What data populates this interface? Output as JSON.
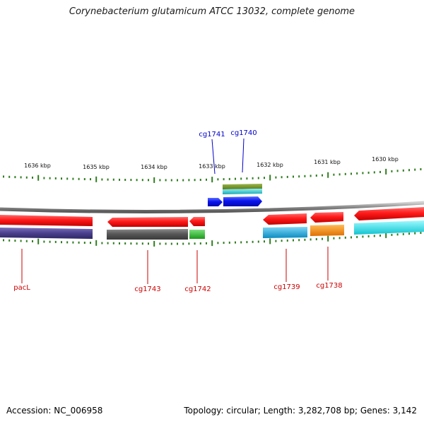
{
  "title": "Corynebacterium glutamicum ATCC 13032, complete genome",
  "footer": {
    "accession": "Accession: NC_006958",
    "topology": "Topology: circular; Length: 3,282,708 bp; Genes: 3,142"
  },
  "colors": {
    "backbone": "#888888",
    "tick": "#2e7d1e",
    "label_red": "#cc0000",
    "label_blue": "#0000cc",
    "feature_red": "#ff1a1a",
    "feature_blue": "#0a14f0",
    "feature_olive": "#6b8e23",
    "feature_teal": "#22c0c8",
    "feature_navy": "#4a3f8c",
    "feature_gray": "#555555",
    "feature_green": "#22bb22",
    "feature_sky": "#14aee0",
    "feature_orange": "#ff8c00",
    "feature_cyan": "#16e6f0"
  },
  "ruler_labels": [
    "1636 kbp",
    "1635 kbp",
    "1634 kbp",
    "1633 kbp",
    "1632 kbp",
    "1631 kbp",
    "1630 kbp"
  ],
  "gene_labels": [
    {
      "name": "pacL",
      "color": "red"
    },
    {
      "name": "cg1743",
      "color": "red"
    },
    {
      "name": "cg1742",
      "color": "red"
    },
    {
      "name": "cg1739",
      "color": "red"
    },
    {
      "name": "cg1738",
      "color": "red"
    },
    {
      "name": "cg1741",
      "color": "blue"
    },
    {
      "name": "cg1740",
      "color": "blue"
    }
  ]
}
